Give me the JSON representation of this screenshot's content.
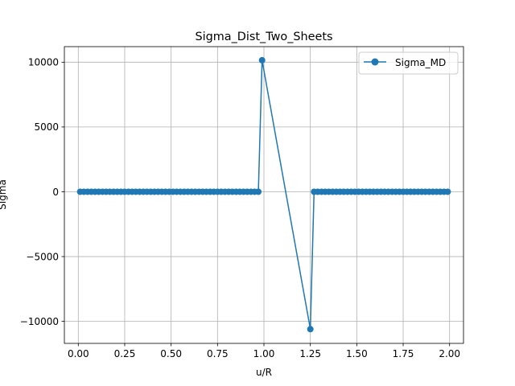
{
  "chart_data": {
    "type": "line",
    "title": "Sigma_Dist_Two_Sheets",
    "xlabel": "u/R",
    "ylabel": "Sigma",
    "xlim": [
      -0.075,
      2.075
    ],
    "ylim": [
      -11700,
      11200
    ],
    "xticks": [
      0.0,
      0.25,
      0.5,
      0.75,
      1.0,
      1.25,
      1.5,
      1.75,
      2.0
    ],
    "xtick_labels": [
      "0.00",
      "0.25",
      "0.50",
      "0.75",
      "1.00",
      "1.25",
      "1.50",
      "1.75",
      "2.00"
    ],
    "yticks": [
      -10000,
      -5000,
      0,
      5000,
      10000
    ],
    "ytick_labels": [
      "−10000",
      "−5000",
      "0",
      "5000",
      "10000"
    ],
    "grid": true,
    "legend_position": "upper right",
    "series": [
      {
        "name": "Sigma_MD",
        "color": "#1f77b4",
        "marker": "circle",
        "points": [
          [
            0.01,
            0
          ],
          [
            0.03,
            0
          ],
          [
            0.05,
            0
          ],
          [
            0.07,
            0
          ],
          [
            0.09,
            0
          ],
          [
            0.11,
            0
          ],
          [
            0.13,
            0
          ],
          [
            0.15,
            0
          ],
          [
            0.17,
            0
          ],
          [
            0.19,
            0
          ],
          [
            0.21,
            0
          ],
          [
            0.23,
            0
          ],
          [
            0.25,
            0
          ],
          [
            0.27,
            0
          ],
          [
            0.29,
            0
          ],
          [
            0.31,
            0
          ],
          [
            0.33,
            0
          ],
          [
            0.35,
            0
          ],
          [
            0.37,
            0
          ],
          [
            0.39,
            0
          ],
          [
            0.41,
            0
          ],
          [
            0.43,
            0
          ],
          [
            0.45,
            0
          ],
          [
            0.47,
            0
          ],
          [
            0.49,
            0
          ],
          [
            0.51,
            0
          ],
          [
            0.53,
            0
          ],
          [
            0.55,
            0
          ],
          [
            0.57,
            0
          ],
          [
            0.59,
            0
          ],
          [
            0.61,
            0
          ],
          [
            0.63,
            0
          ],
          [
            0.65,
            0
          ],
          [
            0.67,
            0
          ],
          [
            0.69,
            0
          ],
          [
            0.71,
            0
          ],
          [
            0.73,
            0
          ],
          [
            0.75,
            0
          ],
          [
            0.77,
            0
          ],
          [
            0.79,
            0
          ],
          [
            0.81,
            0
          ],
          [
            0.83,
            0
          ],
          [
            0.85,
            0
          ],
          [
            0.87,
            0
          ],
          [
            0.89,
            0
          ],
          [
            0.91,
            0
          ],
          [
            0.93,
            0
          ],
          [
            0.95,
            0
          ],
          [
            0.97,
            0
          ],
          [
            0.99,
            10150
          ],
          [
            1.25,
            -10600
          ],
          [
            1.27,
            0
          ],
          [
            1.29,
            0
          ],
          [
            1.31,
            0
          ],
          [
            1.33,
            0
          ],
          [
            1.35,
            0
          ],
          [
            1.37,
            0
          ],
          [
            1.39,
            0
          ],
          [
            1.41,
            0
          ],
          [
            1.43,
            0
          ],
          [
            1.45,
            0
          ],
          [
            1.47,
            0
          ],
          [
            1.49,
            0
          ],
          [
            1.51,
            0
          ],
          [
            1.53,
            0
          ],
          [
            1.55,
            0
          ],
          [
            1.57,
            0
          ],
          [
            1.59,
            0
          ],
          [
            1.61,
            0
          ],
          [
            1.63,
            0
          ],
          [
            1.65,
            0
          ],
          [
            1.67,
            0
          ],
          [
            1.69,
            0
          ],
          [
            1.71,
            0
          ],
          [
            1.73,
            0
          ],
          [
            1.75,
            0
          ],
          [
            1.77,
            0
          ],
          [
            1.79,
            0
          ],
          [
            1.81,
            0
          ],
          [
            1.83,
            0
          ],
          [
            1.85,
            0
          ],
          [
            1.87,
            0
          ],
          [
            1.89,
            0
          ],
          [
            1.91,
            0
          ],
          [
            1.93,
            0
          ],
          [
            1.95,
            0
          ],
          [
            1.97,
            0
          ],
          [
            1.99,
            0
          ]
        ]
      }
    ]
  }
}
